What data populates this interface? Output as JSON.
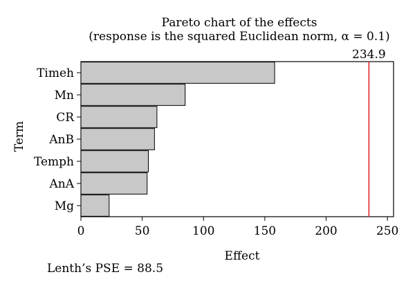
{
  "chart_data": {
    "type": "bar",
    "orientation": "horizontal",
    "title": "Pareto chart of the effects",
    "subtitle": "(response is the squared Euclidean norm, α = 0.1)",
    "xlabel": "Effect",
    "ylabel": "Term",
    "categories": [
      "Timeh",
      "Mn",
      "CR",
      "AnB",
      "Temph",
      "AnA",
      "Mg"
    ],
    "values": [
      158,
      85,
      62,
      60,
      55,
      54,
      23
    ],
    "xlim": [
      0,
      255
    ],
    "xticks": [
      0,
      50,
      100,
      150,
      200,
      250
    ],
    "reference_line": {
      "value": 234.9,
      "label": "234.9",
      "color": "#e8202a"
    },
    "bar_color": "#c8c8c8",
    "grid": false,
    "footnote": "Lenth’s PSE = 88.5"
  }
}
